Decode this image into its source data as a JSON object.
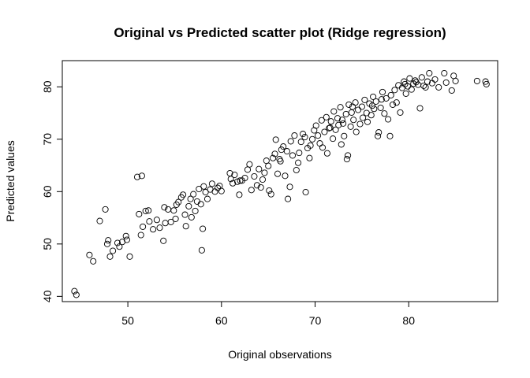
{
  "chart_data": {
    "type": "scatter",
    "title": "Original vs Predicted scatter plot (Ridge regression)",
    "xlabel": "Original observations",
    "ylabel": "Predicted values",
    "xlim": [
      43,
      89.5
    ],
    "ylim": [
      39,
      85
    ],
    "xticks": [
      "50",
      "60",
      "70",
      "80"
    ],
    "yticks": [
      "40",
      "50",
      "60",
      "70",
      "80"
    ],
    "grid": false,
    "legend": "none",
    "marker": "open-circle",
    "color": "#000000",
    "series": [
      {
        "values": [
          [
            44.3,
            41.0
          ],
          [
            44.5,
            40.3
          ],
          [
            45.9,
            47.9
          ],
          [
            46.3,
            46.7
          ],
          [
            47.0,
            54.4
          ],
          [
            47.6,
            56.6
          ],
          [
            47.9,
            50.7
          ],
          [
            47.8,
            50.0
          ],
          [
            48.1,
            47.6
          ],
          [
            48.4,
            48.7
          ],
          [
            48.9,
            50.2
          ],
          [
            49.1,
            49.5
          ],
          [
            49.4,
            50.4
          ],
          [
            49.8,
            51.5
          ],
          [
            49.9,
            50.8
          ],
          [
            50.2,
            47.6
          ],
          [
            51.0,
            62.8
          ],
          [
            51.2,
            55.7
          ],
          [
            51.5,
            63.0
          ],
          [
            51.4,
            51.7
          ],
          [
            51.6,
            53.3
          ],
          [
            51.9,
            56.3
          ],
          [
            52.2,
            56.4
          ],
          [
            52.3,
            54.3
          ],
          [
            52.7,
            52.8
          ],
          [
            53.1,
            54.6
          ],
          [
            53.4,
            53.1
          ],
          [
            53.8,
            50.6
          ],
          [
            53.9,
            57.0
          ],
          [
            54.0,
            54.0
          ],
          [
            54.3,
            56.6
          ],
          [
            54.6,
            54.2
          ],
          [
            54.9,
            56.4
          ],
          [
            55.1,
            54.8
          ],
          [
            55.2,
            57.5
          ],
          [
            55.4,
            58.0
          ],
          [
            55.7,
            58.9
          ],
          [
            55.9,
            59.4
          ],
          [
            56.1,
            55.6
          ],
          [
            56.2,
            53.4
          ],
          [
            56.5,
            57.2
          ],
          [
            56.7,
            58.6
          ],
          [
            56.8,
            55.1
          ],
          [
            57.0,
            59.5
          ],
          [
            57.2,
            56.3
          ],
          [
            57.4,
            58.1
          ],
          [
            57.6,
            60.5
          ],
          [
            57.8,
            57.6
          ],
          [
            58.0,
            52.9
          ],
          [
            57.9,
            48.8
          ],
          [
            58.1,
            61.0
          ],
          [
            58.3,
            59.9
          ],
          [
            58.5,
            58.6
          ],
          [
            58.8,
            60.4
          ],
          [
            59.0,
            61.5
          ],
          [
            59.3,
            60.0
          ],
          [
            59.6,
            60.7
          ],
          [
            59.8,
            61.1
          ],
          [
            60.0,
            60.1
          ],
          [
            61.0,
            62.4
          ],
          [
            61.2,
            61.6
          ],
          [
            61.4,
            63.2
          ],
          [
            61.7,
            61.9
          ],
          [
            61.9,
            59.4
          ],
          [
            62.2,
            62.1
          ],
          [
            62.5,
            62.6
          ],
          [
            62.8,
            64.2
          ],
          [
            63.0,
            65.2
          ],
          [
            63.2,
            60.3
          ],
          [
            63.5,
            62.9
          ],
          [
            63.8,
            61.2
          ],
          [
            64.0,
            64.3
          ],
          [
            64.2,
            60.8
          ],
          [
            64.4,
            62.3
          ],
          [
            64.6,
            63.6
          ],
          [
            64.8,
            65.9
          ],
          [
            65.0,
            64.9
          ],
          [
            65.1,
            60.2
          ],
          [
            65.3,
            59.5
          ],
          [
            65.5,
            66.4
          ],
          [
            65.7,
            67.2
          ],
          [
            65.8,
            69.9
          ],
          [
            66.0,
            63.4
          ],
          [
            66.2,
            66.2
          ],
          [
            66.4,
            68.0
          ],
          [
            66.6,
            68.6
          ],
          [
            66.8,
            63.0
          ],
          [
            67.0,
            67.7
          ],
          [
            67.1,
            58.6
          ],
          [
            67.3,
            60.9
          ],
          [
            67.4,
            69.6
          ],
          [
            67.6,
            66.9
          ],
          [
            67.8,
            70.7
          ],
          [
            68.0,
            64.1
          ],
          [
            68.2,
            65.5
          ],
          [
            68.3,
            67.4
          ],
          [
            68.5,
            69.5
          ],
          [
            68.7,
            71.0
          ],
          [
            68.9,
            70.4
          ],
          [
            69.0,
            59.9
          ],
          [
            69.2,
            68.3
          ],
          [
            69.4,
            66.4
          ],
          [
            69.5,
            68.8
          ],
          [
            69.7,
            70.0
          ],
          [
            69.9,
            71.7
          ],
          [
            70.1,
            72.6
          ],
          [
            70.3,
            70.7
          ],
          [
            70.5,
            69.2
          ],
          [
            70.7,
            73.6
          ],
          [
            70.8,
            68.4
          ],
          [
            71.0,
            71.4
          ],
          [
            71.2,
            74.2
          ],
          [
            71.3,
            67.3
          ],
          [
            71.5,
            72.1
          ],
          [
            71.7,
            73.4
          ],
          [
            71.9,
            70.1
          ],
          [
            72.0,
            75.3
          ],
          [
            72.2,
            71.8
          ],
          [
            72.4,
            74.0
          ],
          [
            72.5,
            72.7
          ],
          [
            72.7,
            76.1
          ],
          [
            72.8,
            69.0
          ],
          [
            73.0,
            73.0
          ],
          [
            73.1,
            70.6
          ],
          [
            73.3,
            74.8
          ],
          [
            73.4,
            66.2
          ],
          [
            73.5,
            66.9
          ],
          [
            73.6,
            76.6
          ],
          [
            73.8,
            72.4
          ],
          [
            73.9,
            75.1
          ],
          [
            74.1,
            73.7
          ],
          [
            74.3,
            77.0
          ],
          [
            74.4,
            71.4
          ],
          [
            74.6,
            75.6
          ],
          [
            74.8,
            72.9
          ],
          [
            75.0,
            76.2
          ],
          [
            75.1,
            74.1
          ],
          [
            75.3,
            77.5
          ],
          [
            75.5,
            75.0
          ],
          [
            75.6,
            73.3
          ],
          [
            75.8,
            76.8
          ],
          [
            76.0,
            74.6
          ],
          [
            76.2,
            78.1
          ],
          [
            76.3,
            75.8
          ],
          [
            76.5,
            77.2
          ],
          [
            76.7,
            70.6
          ],
          [
            76.8,
            71.3
          ],
          [
            77.0,
            76.0
          ],
          [
            77.2,
            79.0
          ],
          [
            77.4,
            74.9
          ],
          [
            77.6,
            77.8
          ],
          [
            77.8,
            73.8
          ],
          [
            78.0,
            70.6
          ],
          [
            78.1,
            78.4
          ],
          [
            78.3,
            76.6
          ],
          [
            78.5,
            79.4
          ],
          [
            78.7,
            77.0
          ],
          [
            78.9,
            80.3
          ],
          [
            79.1,
            75.1
          ],
          [
            79.3,
            79.8
          ],
          [
            79.5,
            81.0
          ],
          [
            79.7,
            78.7
          ],
          [
            79.9,
            80.1
          ],
          [
            80.1,
            81.6
          ],
          [
            80.3,
            79.5
          ],
          [
            80.5,
            80.6
          ],
          [
            80.7,
            81.2
          ],
          [
            81.0,
            80.4
          ],
          [
            81.2,
            75.9
          ],
          [
            81.4,
            81.8
          ],
          [
            81.6,
            80.2
          ],
          [
            81.8,
            79.9
          ],
          [
            82.0,
            81.0
          ],
          [
            82.2,
            82.6
          ],
          [
            82.5,
            80.7
          ],
          [
            82.8,
            81.4
          ],
          [
            83.2,
            79.9
          ],
          [
            83.8,
            82.6
          ],
          [
            84.0,
            80.8
          ],
          [
            84.6,
            79.3
          ],
          [
            84.8,
            82.1
          ],
          [
            85.0,
            81.1
          ],
          [
            87.3,
            81.1
          ],
          [
            88.2,
            81.0
          ],
          [
            88.3,
            80.5
          ],
          [
            60.9,
            63.5
          ],
          [
            62.0,
            62.1
          ],
          [
            66.3,
            65.8
          ],
          [
            71.6,
            72.2
          ],
          [
            72.9,
            73.7
          ],
          [
            74.0,
            76.2
          ],
          [
            76.1,
            76.4
          ],
          [
            77.1,
            77.6
          ],
          [
            79.6,
            80.5
          ],
          [
            80.8,
            80.9
          ]
        ]
      }
    ]
  }
}
